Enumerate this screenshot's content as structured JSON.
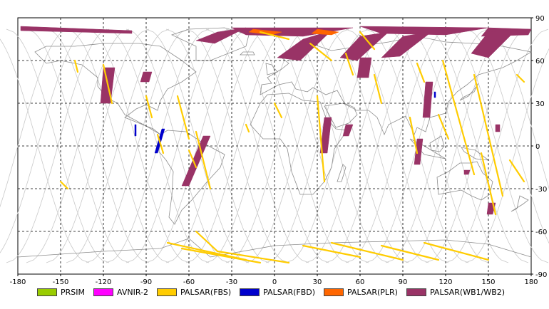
{
  "map": {
    "projection": "equirectangular",
    "lon_range": [
      -180,
      180
    ],
    "lat_range": [
      -90,
      90
    ],
    "x_ticks": [
      "-180",
      "-150",
      "-120",
      "-90",
      "-60",
      "-30",
      "0",
      "30",
      "60",
      "90",
      "120",
      "150",
      "180"
    ],
    "y_ticks": [
      "90",
      "60",
      "30",
      "0",
      "-30",
      "-60",
      "-90"
    ],
    "grid": "dashed every 30 degrees",
    "colors": {
      "land_outline": "#8c8c8c",
      "orbit_track": "#c8c8c8",
      "grid": "#000000"
    }
  },
  "legend": [
    {
      "label": "PRSIM",
      "color": "#99cc00"
    },
    {
      "label": "AVNIR-2",
      "color": "#ff00ff"
    },
    {
      "label": "PALSAR(FBS)",
      "color": "#ffcc00"
    },
    {
      "label": "PALSAR(FBD)",
      "color": "#0000cc"
    },
    {
      "label": "PALSAR(PLR)",
      "color": "#ff6600"
    },
    {
      "label": "PALSAR(WB1/WB2)",
      "color": "#993366"
    }
  ]
}
